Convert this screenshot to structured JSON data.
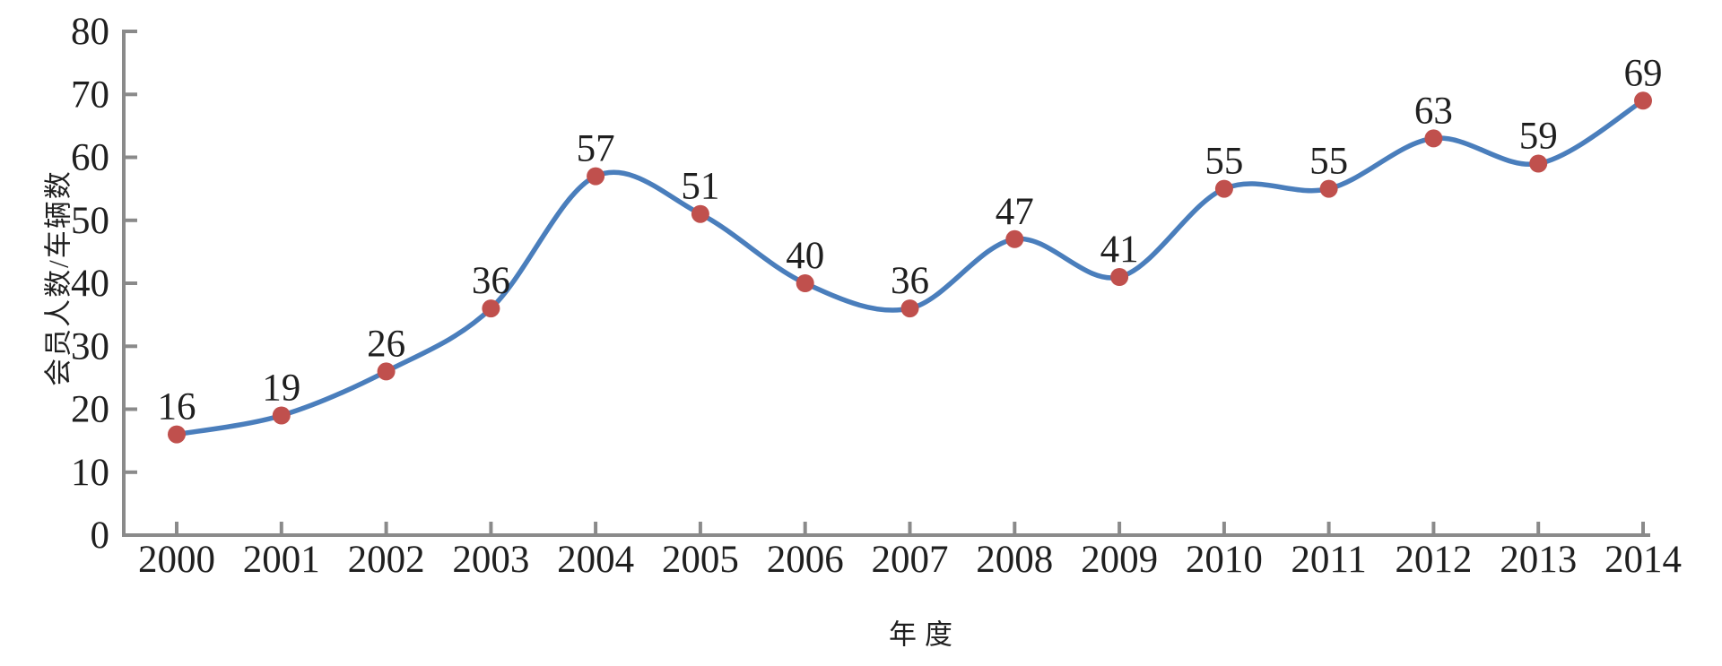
{
  "chart_data": {
    "type": "line",
    "smooth": true,
    "title": "",
    "xlabel": "年度",
    "ylabel": "会员人数/车辆数",
    "categories": [
      "2000",
      "2001",
      "2002",
      "2003",
      "2004",
      "2005",
      "2006",
      "2007",
      "2008",
      "2009",
      "2010",
      "2011",
      "2012",
      "2013",
      "2014"
    ],
    "series": [
      {
        "name": "会员人数/车辆数",
        "values": [
          16,
          19,
          26,
          36,
          57,
          51,
          40,
          36,
          47,
          41,
          55,
          55,
          63,
          59,
          69
        ]
      }
    ],
    "ylim": [
      0,
      80
    ],
    "yticks": [
      0,
      10,
      20,
      30,
      40,
      50,
      60,
      70,
      80
    ],
    "grid": false,
    "legend": "none",
    "data_labels_shown": true,
    "colors": {
      "line": "#4a7ebc",
      "marker": "#c0504d",
      "axis": "#8a8a8a",
      "text": "#1f1f1f",
      "background": "#ffffff"
    }
  }
}
